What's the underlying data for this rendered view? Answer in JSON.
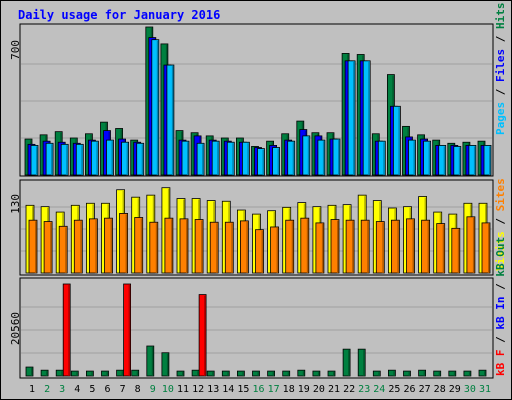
{
  "title": "Daily usage for January 2016",
  "colors": {
    "hits": "#008040",
    "files": "#0000ff",
    "pages": "#00c0ff",
    "visits": "#ffff00",
    "sites": "#ff8000",
    "kb_f": "#ff0000",
    "kb_in": "#008040",
    "kb_out": "#00c0ff"
  },
  "panels": {
    "top": {
      "max_label": "700",
      "legend": [
        "Pages",
        "/",
        "Files",
        "/",
        "Hits"
      ]
    },
    "mid": {
      "max_label": "130",
      "legend": [
        "Visits",
        "/",
        "Sites"
      ]
    },
    "bot": {
      "max_label": "20560",
      "legend": [
        "kB Out",
        "/",
        "kB In",
        "/",
        "kB F"
      ]
    }
  },
  "chart_data": {
    "type": "bar",
    "title": "Daily usage for January 2016",
    "days": [
      "1",
      "2",
      "3",
      "4",
      "5",
      "6",
      "7",
      "8",
      "9",
      "10",
      "11",
      "12",
      "13",
      "14",
      "15",
      "16",
      "17",
      "18",
      "19",
      "20",
      "21",
      "22",
      "23",
      "24",
      "25",
      "26",
      "27",
      "28",
      "29",
      "30",
      "31"
    ],
    "weekend_days": [
      "2",
      "3",
      "9",
      "10",
      "16",
      "17",
      "23",
      "24",
      "30",
      "31"
    ],
    "top": {
      "ymax": 700,
      "series": [
        {
          "name": "Hits",
          "color": "#008040",
          "values": [
            170,
            190,
            205,
            175,
            195,
            250,
            220,
            165,
            700,
            620,
            210,
            200,
            185,
            175,
            175,
            135,
            160,
            195,
            255,
            200,
            200,
            575,
            570,
            195,
            475,
            230,
            190,
            165,
            150,
            155,
            160
          ]
        },
        {
          "name": "Files",
          "color": "#0000ff",
          "values": [
            145,
            160,
            155,
            150,
            165,
            210,
            170,
            155,
            650,
            520,
            165,
            185,
            165,
            160,
            155,
            130,
            140,
            165,
            215,
            185,
            170,
            540,
            540,
            160,
            325,
            180,
            170,
            140,
            140,
            140,
            140
          ]
        },
        {
          "name": "Pages",
          "color": "#00c0ff",
          "values": [
            140,
            150,
            145,
            145,
            160,
            165,
            155,
            150,
            640,
            520,
            160,
            150,
            160,
            155,
            155,
            125,
            130,
            160,
            185,
            165,
            170,
            540,
            540,
            160,
            325,
            165,
            160,
            140,
            135,
            140,
            140
          ]
        }
      ]
    },
    "mid": {
      "ymax": 130,
      "series": [
        {
          "name": "Visits",
          "color": "#ffff00",
          "values": [
            100,
            98,
            90,
            100,
            103,
            103,
            123,
            112,
            115,
            126,
            110,
            110,
            107,
            106,
            93,
            87,
            92,
            97,
            104,
            98,
            100,
            101,
            115,
            107,
            96,
            98,
            113,
            90,
            87,
            103,
            103
          ]
        },
        {
          "name": "Sites",
          "color": "#ff8000",
          "values": [
            78,
            76,
            69,
            78,
            80,
            81,
            88,
            82,
            75,
            81,
            80,
            79,
            75,
            75,
            77,
            64,
            68,
            78,
            81,
            74,
            79,
            78,
            78,
            76,
            78,
            80,
            78,
            73,
            66,
            83,
            74
          ]
        }
      ]
    },
    "bot": {
      "ymax": 20560,
      "series": [
        {
          "name": "kB F",
          "color": "#ff0000",
          "values": [
            0,
            0,
            20560,
            0,
            0,
            0,
            20560,
            0,
            0,
            0,
            0,
            18200,
            0,
            0,
            0,
            0,
            0,
            0,
            0,
            0,
            0,
            0,
            0,
            0,
            0,
            0,
            0,
            0,
            0,
            0,
            0
          ]
        },
        {
          "name": "kB In",
          "color": "#008040",
          "values": [
            2000,
            1300,
            1300,
            1100,
            1100,
            1100,
            1300,
            1300,
            6700,
            5200,
            1100,
            1300,
            1100,
            1100,
            1100,
            1100,
            1100,
            1100,
            1300,
            1100,
            1100,
            6000,
            6000,
            1100,
            1300,
            1100,
            1300,
            1100,
            1100,
            1100,
            1300
          ]
        },
        {
          "name": "kB Out",
          "color": "#00c0ff",
          "values": [
            0,
            0,
            0,
            0,
            0,
            0,
            0,
            0,
            0,
            0,
            0,
            0,
            0,
            0,
            0,
            0,
            0,
            0,
            0,
            0,
            0,
            0,
            0,
            0,
            0,
            0,
            0,
            0,
            0,
            0,
            0
          ]
        }
      ]
    }
  }
}
